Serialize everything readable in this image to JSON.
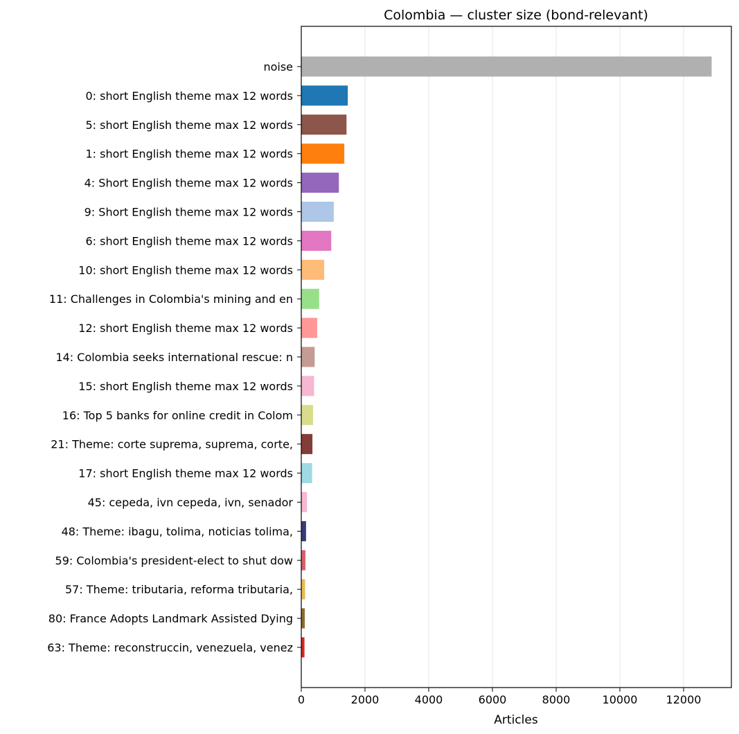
{
  "chart_data": {
    "type": "bar",
    "orientation": "horizontal",
    "title": "Colombia — cluster size (bond-relevant)",
    "xlabel": "Articles",
    "ylabel": "",
    "xlim": [
      0,
      13500
    ],
    "xticks": [
      0,
      2000,
      4000,
      6000,
      8000,
      10000,
      12000
    ],
    "grid": "vertical",
    "categories": [
      "noise",
      "0: short English theme max 12 words",
      "5: short English theme max 12 words",
      "1: short English theme max 12 words",
      "4: Short English theme max 12 words",
      "9: Short English theme max 12 words",
      "6: short English theme max 12 words",
      "10: short English theme max 12 words",
      "11: Challenges in Colombia's mining and en",
      "12: short English theme max 12 words",
      "14: Colombia seeks international rescue: n",
      "15: short English theme max 12 words",
      "16: Top 5 banks for online credit in Colom",
      "21: Theme: corte suprema, suprema, corte, ",
      "17: short English theme max 12 words",
      "45: cepeda, ivn cepeda, ivn, senador",
      "48: Theme: ibagu, tolima, noticias tolima,",
      "59: Colombia's president-elect to shut dow",
      "57: Theme: tributaria, reforma tributaria,",
      "80: France Adopts Landmark Assisted Dying ",
      "63: Theme: reconstruccin, venezuela, venez"
    ],
    "values": [
      12880,
      1460,
      1420,
      1350,
      1180,
      1020,
      940,
      720,
      560,
      500,
      420,
      400,
      370,
      350,
      340,
      180,
      150,
      130,
      120,
      110,
      100
    ],
    "colors": [
      "#b0b0b0",
      "#1f77b4",
      "#8c564b",
      "#ff7f0e",
      "#9467bd",
      "#aec7e8",
      "#e377c2",
      "#ffbb78",
      "#98df8a",
      "#ff9896",
      "#c49c94",
      "#f7b6d2",
      "#dbdb8d",
      "#843c39",
      "#9edae5",
      "#f7b6d2",
      "#393b79",
      "#d6616b",
      "#e7ba52",
      "#8c6d31",
      "#d62728"
    ]
  }
}
